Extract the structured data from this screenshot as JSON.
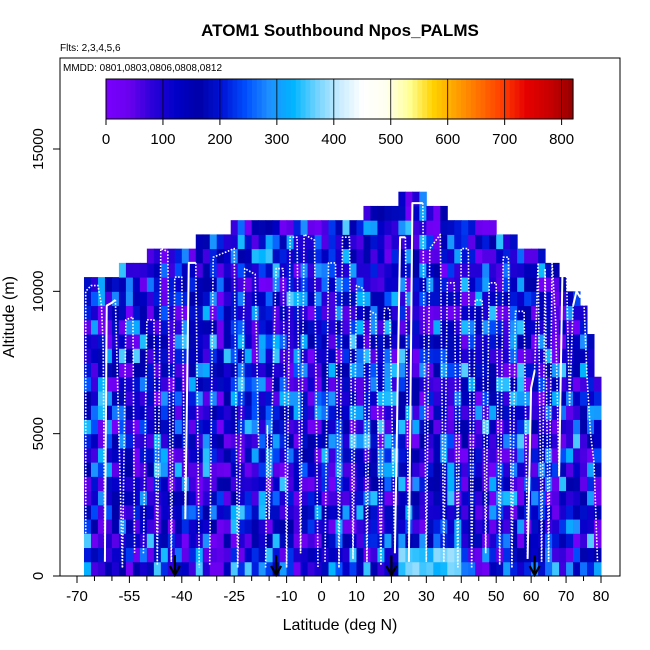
{
  "chart_data": {
    "type": "heatmap",
    "title": "ATOM1 Southbound Npos_PALMS",
    "annotations": {
      "flights": "Flts: 2,3,4,5,6",
      "dates": "MMDD: 0801,0803,0806,0808,0812"
    },
    "xlabel": "Latitude (deg N)",
    "ylabel": "Altitude (m)",
    "xlim": [
      -72,
      82
    ],
    "ylim": [
      0,
      17500
    ],
    "x_ticks": [
      -70,
      -55,
      -40,
      -25,
      -10,
      0,
      10,
      20,
      30,
      40,
      50,
      60,
      70,
      80
    ],
    "x_tick_labels": [
      "-70",
      "-55",
      "-40",
      "-25",
      "-10",
      "0",
      "10",
      "20",
      "30",
      "40",
      "50",
      "60",
      "70",
      "80"
    ],
    "y_ticks": [
      0,
      5000,
      10000,
      15000
    ],
    "y_tick_labels": [
      "0",
      "5000",
      "10000",
      "15000"
    ],
    "colorbar": {
      "min": 0,
      "max": 820,
      "ticks": [
        0,
        100,
        200,
        300,
        400,
        500,
        600,
        700,
        800
      ],
      "tick_labels": [
        "0",
        "100",
        "200",
        "300",
        "400",
        "500",
        "600",
        "700",
        "800"
      ]
    },
    "colormap": [
      "#7a00ff",
      "#6a00ee",
      "#2b00d8",
      "#0000c8",
      "#0000a8",
      "#0014d8",
      "#0050ff",
      "#1e90ff",
      "#00b4ff",
      "#6ed2ff",
      "#c8ecff",
      "#ffffff",
      "#fffff0",
      "#ffff96",
      "#ffd200",
      "#ffa000",
      "#ff6e00",
      "#ff3c00",
      "#e60000",
      "#c80000",
      "#960000"
    ],
    "cross_section": {
      "lat_start": -68,
      "lat_end": 80,
      "lat_step": 2,
      "alt_step": 500,
      "top_profile": [
        [
          -68,
          10500
        ],
        [
          -60,
          10500
        ],
        [
          -54,
          11000
        ],
        [
          -46,
          11500
        ],
        [
          -40,
          11500
        ],
        [
          -30,
          12000
        ],
        [
          -20,
          12500
        ],
        [
          -10,
          12500
        ],
        [
          0,
          12500
        ],
        [
          10,
          12500
        ],
        [
          16,
          13000
        ],
        [
          22,
          13000
        ],
        [
          24,
          13500
        ],
        [
          28,
          13500
        ],
        [
          30,
          13000
        ],
        [
          40,
          12500
        ],
        [
          48,
          12500
        ],
        [
          52,
          12000
        ],
        [
          60,
          11500
        ],
        [
          66,
          11000
        ],
        [
          72,
          10000
        ],
        [
          76,
          9000
        ],
        [
          78,
          8000
        ],
        [
          80,
          6000
        ]
      ]
    },
    "flight_segments": [
      {
        "x": [
          -67.5,
          -67.5,
          -66,
          -64,
          -63,
          -62.5,
          -62
        ],
        "y": [
          1500,
          10000,
          10200,
          10200,
          9500,
          8000,
          500
        ],
        "style": "dotted"
      },
      {
        "x": [
          -62,
          -61.5,
          -60,
          -59
        ],
        "y": [
          500,
          9500,
          9600,
          9700
        ],
        "style": "solid"
      },
      {
        "x": [
          -59,
          -58,
          -57
        ],
        "y": [
          9700,
          5000,
          300
        ],
        "style": "dotted"
      },
      {
        "x": [
          -57,
          -56,
          -54,
          -53.5
        ],
        "y": [
          300,
          9000,
          9100,
          800
        ],
        "style": "dotted"
      },
      {
        "x": [
          -51,
          -50,
          -48,
          -47
        ],
        "y": [
          800,
          9000,
          9000,
          400
        ],
        "style": "dotted"
      },
      {
        "x": [
          -47,
          -46,
          -44,
          -43
        ],
        "y": [
          400,
          11500,
          11400,
          500
        ],
        "style": "dotted"
      },
      {
        "x": [
          -43,
          -42,
          -40,
          -39
        ],
        "y": [
          500,
          10500,
          10500,
          2000
        ],
        "style": "dotted"
      },
      {
        "x": [
          -39,
          -38,
          -36
        ],
        "y": [
          2000,
          11000,
          11000
        ],
        "style": "solid"
      },
      {
        "x": [
          -36,
          -35
        ],
        "y": [
          11000,
          300
        ],
        "style": "dotted"
      },
      {
        "x": [
          -32,
          -31,
          -27,
          -25,
          -24
        ],
        "y": [
          400,
          11200,
          11400,
          11500,
          300
        ],
        "style": "dotted"
      },
      {
        "x": [
          -24,
          -22,
          -19,
          -18
        ],
        "y": [
          300,
          10800,
          10600,
          4500
        ],
        "style": "dotted"
      },
      {
        "x": [
          -16,
          -15.5,
          -15
        ],
        "y": [
          300,
          5300,
          2000
        ],
        "style": "dotted"
      },
      {
        "x": [
          -15,
          -13,
          -11,
          -10
        ],
        "y": [
          2000,
          10800,
          10800,
          300
        ],
        "style": "dotted"
      },
      {
        "x": [
          -10,
          -9,
          -7,
          -6
        ],
        "y": [
          300,
          11900,
          11900,
          800
        ],
        "style": "dotted"
      },
      {
        "x": [
          -6,
          -5,
          -2,
          -1
        ],
        "y": [
          800,
          12000,
          11800,
          300
        ],
        "style": "dotted"
      },
      {
        "x": [
          1,
          2,
          4,
          5
        ],
        "y": [
          500,
          11000,
          11000,
          300
        ],
        "style": "dotted"
      },
      {
        "x": [
          5,
          6,
          8,
          9
        ],
        "y": [
          300,
          11900,
          11900,
          600
        ],
        "style": "dotted"
      },
      {
        "x": [
          9,
          10,
          12,
          13
        ],
        "y": [
          600,
          10200,
          10100,
          500
        ],
        "style": "dotted"
      },
      {
        "x": [
          13,
          14,
          15.5,
          17
        ],
        "y": [
          500,
          9300,
          9200,
          400
        ],
        "style": "dotted"
      },
      {
        "x": [
          17,
          18,
          19.5,
          21
        ],
        "y": [
          400,
          9400,
          9400,
          800
        ],
        "style": "dotted"
      },
      {
        "x": [
          21,
          22.5,
          24
        ],
        "y": [
          800,
          11900,
          11900
        ],
        "style": "solid"
      },
      {
        "x": [
          24,
          25
        ],
        "y": [
          11900,
          500
        ],
        "style": "dotted"
      },
      {
        "x": [
          25,
          26,
          29
        ],
        "y": [
          500,
          13100,
          13100
        ],
        "style": "solid"
      },
      {
        "x": [
          29,
          30
        ],
        "y": [
          13100,
          500
        ],
        "style": "dotted"
      },
      {
        "x": [
          30,
          31,
          34,
          35
        ],
        "y": [
          500,
          11500,
          12000,
          500
        ],
        "style": "dotted"
      },
      {
        "x": [
          35,
          36,
          38,
          39
        ],
        "y": [
          500,
          10300,
          10300,
          300
        ],
        "style": "dotted"
      },
      {
        "x": [
          39,
          40,
          42,
          43
        ],
        "y": [
          300,
          11500,
          11500,
          300
        ],
        "style": "dotted"
      },
      {
        "x": [
          43,
          44,
          46,
          47
        ],
        "y": [
          300,
          9700,
          9700,
          800
        ],
        "style": "dotted"
      },
      {
        "x": [
          47,
          48,
          50,
          51
        ],
        "y": [
          800,
          10300,
          10300,
          400
        ],
        "style": "dotted"
      },
      {
        "x": [
          51,
          52,
          53.5,
          54.5
        ],
        "y": [
          400,
          11200,
          11200,
          300
        ],
        "style": "dotted"
      },
      {
        "x": [
          54.5,
          55.5,
          58,
          59
        ],
        "y": [
          300,
          9300,
          9300,
          600
        ],
        "style": "dotted"
      },
      {
        "x": [
          59,
          60,
          61
        ],
        "y": [
          600,
          6600,
          7200
        ],
        "style": "solid"
      },
      {
        "x": [
          61,
          62,
          63
        ],
        "y": [
          7200,
          11000,
          500
        ],
        "style": "dotted"
      },
      {
        "x": [
          63,
          64,
          65
        ],
        "y": [
          500,
          10800,
          500
        ],
        "style": "dotted"
      },
      {
        "x": [
          65,
          66,
          67,
          68
        ],
        "y": [
          500,
          11000,
          9000,
          3500
        ],
        "style": "dotted"
      },
      {
        "x": [
          68,
          69,
          70
        ],
        "y": [
          3500,
          11000,
          11200
        ],
        "style": "solid"
      },
      {
        "x": [
          70,
          71,
          72
        ],
        "y": [
          11200,
          6000,
          9500
        ],
        "style": "dotted"
      },
      {
        "x": [
          72,
          73,
          74,
          75
        ],
        "y": [
          9500,
          10000,
          9800,
          10000
        ],
        "style": "solid"
      },
      {
        "x": [
          75,
          76,
          77,
          78,
          79
        ],
        "y": [
          10000,
          7000,
          5000,
          4000,
          500
        ],
        "style": "dotted"
      }
    ],
    "markers": [
      -42,
      -13,
      20,
      61
    ],
    "legend_position": "top"
  }
}
